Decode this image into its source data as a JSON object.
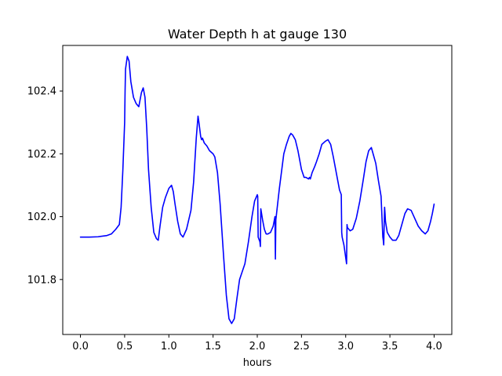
{
  "chart_data": {
    "type": "line",
    "title": "Water Depth h at gauge 130",
    "xlabel": "hours",
    "ylabel": "",
    "xlim": [
      -0.2,
      4.2
    ],
    "ylim": [
      101.625,
      102.545
    ],
    "x_ticks": [
      0.0,
      0.5,
      1.0,
      1.5,
      2.0,
      2.5,
      3.0,
      3.5,
      4.0
    ],
    "x_tick_labels": [
      "0.0",
      "0.5",
      "1.0",
      "1.5",
      "2.0",
      "2.5",
      "3.0",
      "3.5",
      "4.0"
    ],
    "y_ticks": [
      101.8,
      102.0,
      102.2,
      102.4
    ],
    "y_tick_labels": [
      "101.8",
      "102.0",
      "102.2",
      "102.4"
    ],
    "grid": false,
    "legend": "none",
    "colors": {
      "line": "#0000ff",
      "axes": "#000000",
      "background": "#ffffff"
    },
    "series": [
      {
        "color": "#0000ff",
        "x": [
          0.0,
          0.1,
          0.2,
          0.3,
          0.35,
          0.4,
          0.44,
          0.46,
          0.48,
          0.5,
          0.505,
          0.51,
          0.53,
          0.55,
          0.57,
          0.6,
          0.63,
          0.66,
          0.69,
          0.71,
          0.73,
          0.75,
          0.77,
          0.8,
          0.83,
          0.86,
          0.88,
          0.9,
          0.93,
          0.96,
          1.0,
          1.03,
          1.05,
          1.07,
          1.1,
          1.13,
          1.16,
          1.2,
          1.25,
          1.28,
          1.31,
          1.33,
          1.34,
          1.36,
          1.37,
          1.38,
          1.4,
          1.43,
          1.46,
          1.5,
          1.52,
          1.55,
          1.58,
          1.62,
          1.65,
          1.68,
          1.71,
          1.74,
          1.77,
          1.8,
          1.83,
          1.86,
          1.9,
          1.94,
          1.97,
          2.0,
          2.005,
          2.01,
          2.03,
          2.035,
          2.04,
          2.06,
          2.08,
          2.1,
          2.12,
          2.15,
          2.18,
          2.2,
          2.205,
          2.21,
          2.25,
          2.3,
          2.33,
          2.36,
          2.38,
          2.4,
          2.43,
          2.46,
          2.5,
          2.53,
          2.55,
          2.58,
          2.59,
          2.6,
          2.62,
          2.65,
          2.67,
          2.7,
          2.73,
          2.77,
          2.8,
          2.83,
          2.86,
          2.9,
          2.93,
          2.95,
          2.955,
          2.96,
          2.98,
          3.0,
          3.01,
          3.015,
          3.02,
          3.05,
          3.08,
          3.12,
          3.16,
          3.2,
          3.23,
          3.26,
          3.29,
          3.31,
          3.34,
          3.37,
          3.4,
          3.42,
          3.425,
          3.43,
          3.44,
          3.445,
          3.45,
          3.47,
          3.5,
          3.53,
          3.57,
          3.6,
          3.63,
          3.67,
          3.7,
          3.74,
          3.78,
          3.82,
          3.86,
          3.9,
          3.93,
          3.96,
          3.98,
          4.0
        ],
        "y": [
          101.935,
          101.935,
          101.936,
          101.94,
          101.945,
          101.96,
          101.975,
          102.03,
          102.15,
          102.3,
          102.4,
          102.47,
          102.51,
          102.495,
          102.43,
          102.38,
          102.36,
          102.35,
          102.395,
          102.41,
          102.38,
          102.28,
          102.15,
          102.03,
          101.95,
          101.93,
          101.925,
          101.97,
          102.03,
          102.06,
          102.09,
          102.1,
          102.08,
          102.04,
          101.985,
          101.945,
          101.935,
          101.96,
          102.02,
          102.11,
          102.25,
          102.32,
          102.3,
          102.255,
          102.245,
          102.25,
          102.235,
          102.225,
          102.21,
          102.2,
          102.19,
          102.14,
          102.04,
          101.87,
          101.75,
          101.675,
          101.66,
          101.675,
          101.74,
          101.8,
          101.825,
          101.85,
          101.92,
          102.0,
          102.05,
          102.07,
          102.065,
          101.935,
          101.92,
          101.905,
          102.025,
          101.99,
          101.96,
          101.945,
          101.945,
          101.95,
          101.97,
          102.0,
          101.865,
          101.99,
          102.09,
          102.2,
          102.23,
          102.255,
          102.265,
          102.26,
          102.245,
          102.21,
          102.15,
          102.125,
          102.125,
          102.12,
          102.125,
          102.12,
          102.14,
          102.16,
          102.175,
          102.2,
          102.23,
          102.24,
          102.245,
          102.23,
          102.19,
          102.13,
          102.085,
          102.07,
          101.95,
          101.935,
          101.91,
          101.87,
          101.85,
          101.975,
          101.965,
          101.955,
          101.96,
          101.995,
          102.05,
          102.12,
          102.175,
          102.21,
          102.22,
          102.2,
          102.17,
          102.115,
          102.065,
          101.935,
          101.925,
          101.91,
          102.03,
          102.01,
          101.985,
          101.95,
          101.935,
          101.925,
          101.925,
          101.94,
          101.97,
          102.01,
          102.025,
          102.02,
          101.995,
          101.97,
          101.955,
          101.945,
          101.955,
          101.985,
          102.01,
          102.04
        ]
      }
    ]
  }
}
